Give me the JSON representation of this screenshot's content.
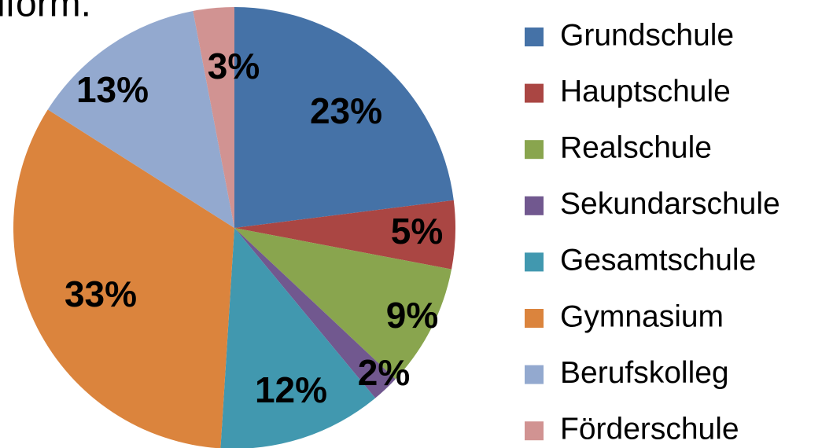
{
  "chart_data": {
    "type": "pie",
    "title": "lform.",
    "categories": [
      "Grundschule",
      "Hauptschule",
      "Realschule",
      "Sekundarschule",
      "Gesamtschule",
      "Gymnasium",
      "Berufskolleg",
      "Förderschule"
    ],
    "values": [
      23,
      5,
      9,
      2,
      12,
      33,
      13,
      3
    ],
    "value_labels": [
      "23%",
      "5%",
      "9%",
      "2%",
      "12%",
      "33%",
      "13%",
      "3%"
    ],
    "colors": [
      "#4572a7",
      "#aa4643",
      "#89a54e",
      "#71588f",
      "#4198af",
      "#db843d",
      "#93a9cf",
      "#d19392"
    ],
    "legend": "right"
  }
}
